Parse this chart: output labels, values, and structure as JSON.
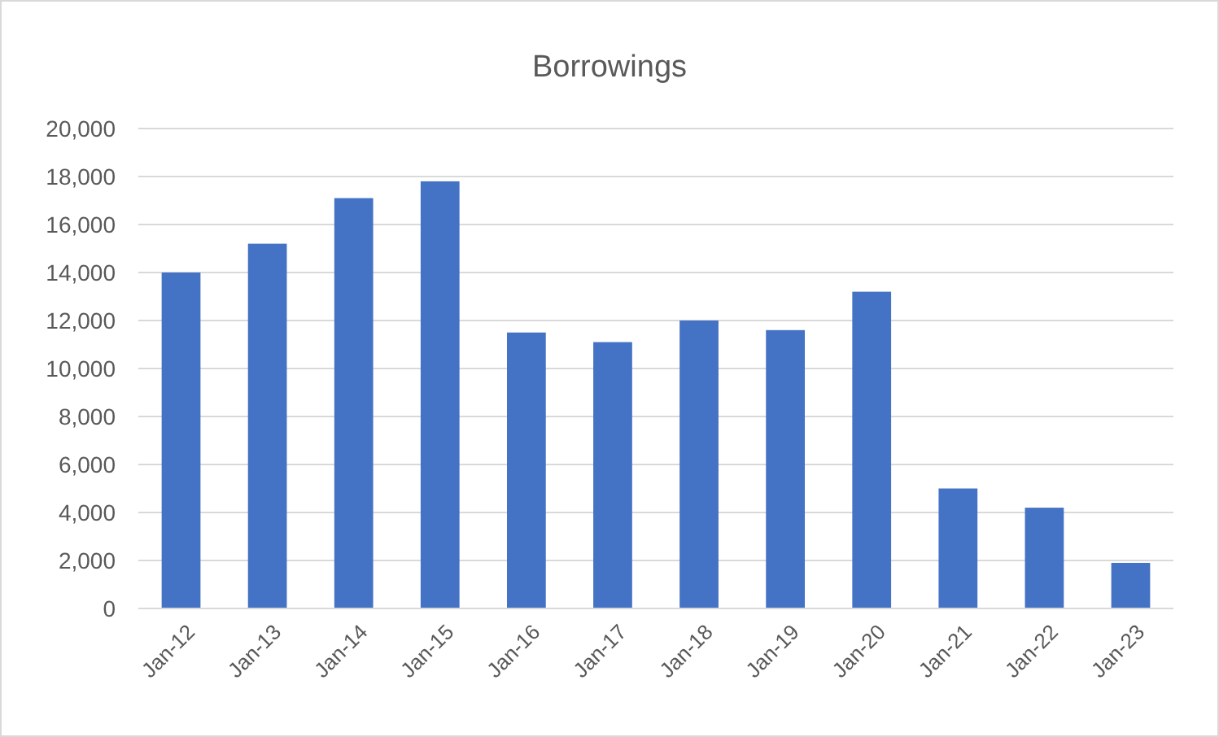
{
  "chart_data": {
    "type": "bar",
    "title": "Borrowings",
    "categories": [
      "Jan-12",
      "Jan-13",
      "Jan-14",
      "Jan-15",
      "Jan-16",
      "Jan-17",
      "Jan-18",
      "Jan-19",
      "Jan-20",
      "Jan-21",
      "Jan-22",
      "Jan-23"
    ],
    "values": [
      14000,
      15200,
      17100,
      17800,
      11500,
      11100,
      12000,
      11600,
      13200,
      5000,
      4200,
      1900
    ],
    "color": "#4472c4",
    "ylim": [
      0,
      20000
    ],
    "yticks": [
      {
        "value": 0,
        "label": "0"
      },
      {
        "value": 2000,
        "label": "2,000"
      },
      {
        "value": 4000,
        "label": "4,000"
      },
      {
        "value": 6000,
        "label": "6,000"
      },
      {
        "value": 8000,
        "label": "8,000"
      },
      {
        "value": 10000,
        "label": "10,000"
      },
      {
        "value": 12000,
        "label": "12,000"
      },
      {
        "value": 14000,
        "label": "14,000"
      },
      {
        "value": 16000,
        "label": "16,000"
      },
      {
        "value": 18000,
        "label": "18,000"
      },
      {
        "value": 20000,
        "label": "20,000"
      }
    ],
    "grid": "y"
  }
}
